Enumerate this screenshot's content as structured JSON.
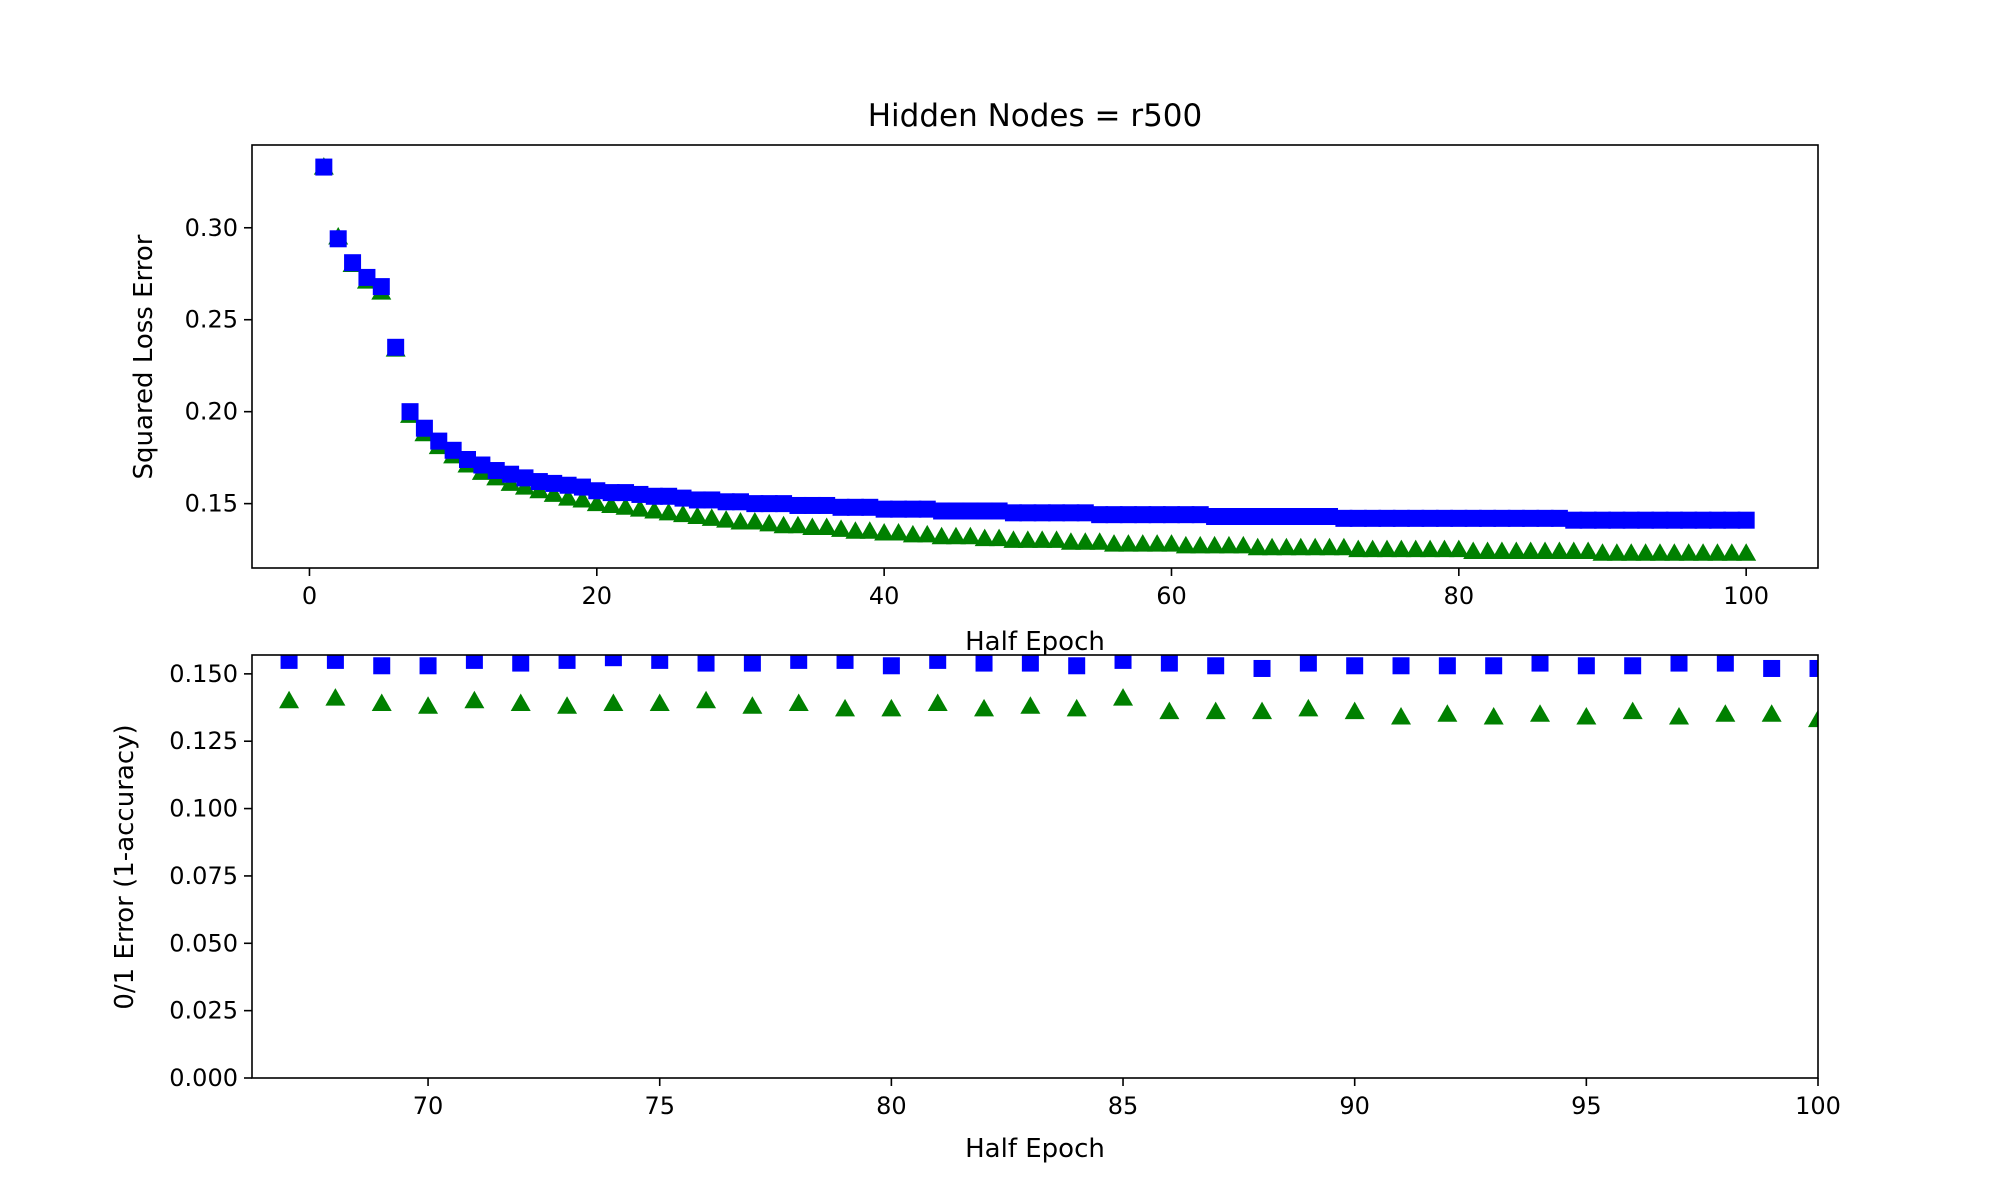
{
  "colors": {
    "series_a": "#0000ff",
    "series_b": "#008000",
    "axes": "#000000",
    "background": "#ffffff"
  },
  "chart_data": [
    {
      "type": "scatter",
      "title": "Hidden Nodes = r500",
      "xlabel": "Half Epoch",
      "ylabel": "Squared Loss Error",
      "xlim": [
        -4,
        105
      ],
      "ylim": [
        0.115,
        0.345
      ],
      "xticks": [
        0,
        20,
        40,
        60,
        80,
        100
      ],
      "yticks": [
        0.15,
        0.2,
        0.25,
        0.3
      ],
      "xtick_labels": [
        "0",
        "20",
        "40",
        "60",
        "80",
        "100"
      ],
      "ytick_labels": [
        "0.15",
        "0.20",
        "0.25",
        "0.30"
      ],
      "grid": false,
      "x": [
        1,
        2,
        3,
        4,
        5,
        6,
        7,
        8,
        9,
        10,
        11,
        12,
        13,
        14,
        15,
        16,
        17,
        18,
        19,
        20,
        21,
        22,
        23,
        24,
        25,
        26,
        27,
        28,
        29,
        30,
        31,
        32,
        33,
        34,
        35,
        36,
        37,
        38,
        39,
        40,
        41,
        42,
        43,
        44,
        45,
        46,
        47,
        48,
        49,
        50,
        51,
        52,
        53,
        54,
        55,
        56,
        57,
        58,
        59,
        60,
        61,
        62,
        63,
        64,
        65,
        66,
        67,
        68,
        69,
        70,
        71,
        72,
        73,
        74,
        75,
        76,
        77,
        78,
        79,
        80,
        81,
        82,
        83,
        84,
        85,
        86,
        87,
        88,
        89,
        90,
        91,
        92,
        93,
        94,
        95,
        96,
        97,
        98,
        99,
        100
      ],
      "series": [
        {
          "marker": "triangle",
          "color": "#008000",
          "values": [
            0.333,
            0.295,
            0.28,
            0.271,
            0.265,
            0.234,
            0.198,
            0.188,
            0.181,
            0.176,
            0.171,
            0.167,
            0.164,
            0.161,
            0.159,
            0.157,
            0.155,
            0.153,
            0.152,
            0.15,
            0.149,
            0.148,
            0.147,
            0.146,
            0.145,
            0.144,
            0.143,
            0.142,
            0.141,
            0.14,
            0.14,
            0.139,
            0.138,
            0.138,
            0.137,
            0.137,
            0.136,
            0.135,
            0.135,
            0.134,
            0.134,
            0.133,
            0.133,
            0.132,
            0.132,
            0.132,
            0.131,
            0.131,
            0.13,
            0.13,
            0.13,
            0.13,
            0.129,
            0.129,
            0.129,
            0.128,
            0.128,
            0.128,
            0.128,
            0.128,
            0.127,
            0.127,
            0.127,
            0.127,
            0.127,
            0.126,
            0.126,
            0.126,
            0.126,
            0.126,
            0.126,
            0.126,
            0.125,
            0.125,
            0.125,
            0.125,
            0.125,
            0.125,
            0.125,
            0.125,
            0.124,
            0.124,
            0.124,
            0.124,
            0.124,
            0.124,
            0.124,
            0.124,
            0.124,
            0.123,
            0.123,
            0.123,
            0.123,
            0.123,
            0.123,
            0.123,
            0.123,
            0.123,
            0.123,
            0.123
          ]
        },
        {
          "marker": "square",
          "color": "#0000ff",
          "values": [
            0.333,
            0.294,
            0.281,
            0.273,
            0.268,
            0.235,
            0.2,
            0.191,
            0.184,
            0.179,
            0.174,
            0.171,
            0.168,
            0.166,
            0.164,
            0.162,
            0.161,
            0.16,
            0.159,
            0.157,
            0.156,
            0.156,
            0.155,
            0.154,
            0.154,
            0.153,
            0.152,
            0.152,
            0.151,
            0.151,
            0.15,
            0.15,
            0.15,
            0.149,
            0.149,
            0.149,
            0.148,
            0.148,
            0.148,
            0.147,
            0.147,
            0.147,
            0.147,
            0.146,
            0.146,
            0.146,
            0.146,
            0.146,
            0.145,
            0.145,
            0.145,
            0.145,
            0.145,
            0.145,
            0.144,
            0.144,
            0.144,
            0.144,
            0.144,
            0.144,
            0.144,
            0.144,
            0.143,
            0.143,
            0.143,
            0.143,
            0.143,
            0.143,
            0.143,
            0.143,
            0.143,
            0.142,
            0.142,
            0.142,
            0.142,
            0.142,
            0.142,
            0.142,
            0.142,
            0.142,
            0.142,
            0.142,
            0.142,
            0.142,
            0.142,
            0.142,
            0.142,
            0.141,
            0.141,
            0.141,
            0.141,
            0.141,
            0.141,
            0.141,
            0.141,
            0.141,
            0.141,
            0.141,
            0.141,
            0.141
          ]
        }
      ]
    },
    {
      "type": "scatter",
      "title": "",
      "xlabel": "Half Epoch",
      "ylabel": "0/1 Error (1-accuracy)",
      "xlim": [
        66.2,
        100
      ],
      "ylim": [
        0.0,
        0.157
      ],
      "xticks": [
        70,
        75,
        80,
        85,
        90,
        95,
        100
      ],
      "yticks": [
        0.0,
        0.025,
        0.05,
        0.075,
        0.1,
        0.125,
        0.15
      ],
      "xtick_labels": [
        "70",
        "75",
        "80",
        "85",
        "90",
        "95",
        "100"
      ],
      "ytick_labels": [
        "0.000",
        "0.025",
        "0.050",
        "0.075",
        "0.100",
        "0.125",
        "0.150"
      ],
      "grid": false,
      "x": [
        67,
        68,
        69,
        70,
        71,
        72,
        73,
        74,
        75,
        76,
        77,
        78,
        79,
        80,
        81,
        82,
        83,
        84,
        85,
        86,
        87,
        88,
        89,
        90,
        91,
        92,
        93,
        94,
        95,
        96,
        97,
        98,
        99,
        100
      ],
      "series": [
        {
          "marker": "triangle",
          "color": "#008000",
          "values": [
            0.14,
            0.141,
            0.139,
            0.138,
            0.14,
            0.139,
            0.138,
            0.139,
            0.139,
            0.14,
            0.138,
            0.139,
            0.137,
            0.137,
            0.139,
            0.137,
            0.138,
            0.137,
            0.141,
            0.136,
            0.136,
            0.136,
            0.137,
            0.136,
            0.134,
            0.135,
            0.134,
            0.135,
            0.134,
            0.136,
            0.134,
            0.135,
            0.135,
            0.133
          ]
        },
        {
          "marker": "square",
          "color": "#0000ff",
          "values": [
            0.155,
            0.155,
            0.153,
            0.153,
            0.155,
            0.154,
            0.155,
            0.156,
            0.155,
            0.154,
            0.154,
            0.155,
            0.155,
            0.153,
            0.155,
            0.154,
            0.154,
            0.153,
            0.155,
            0.154,
            0.153,
            0.152,
            0.154,
            0.153,
            0.153,
            0.153,
            0.153,
            0.154,
            0.153,
            0.153,
            0.154,
            0.154,
            0.152,
            0.152
          ]
        }
      ]
    }
  ]
}
